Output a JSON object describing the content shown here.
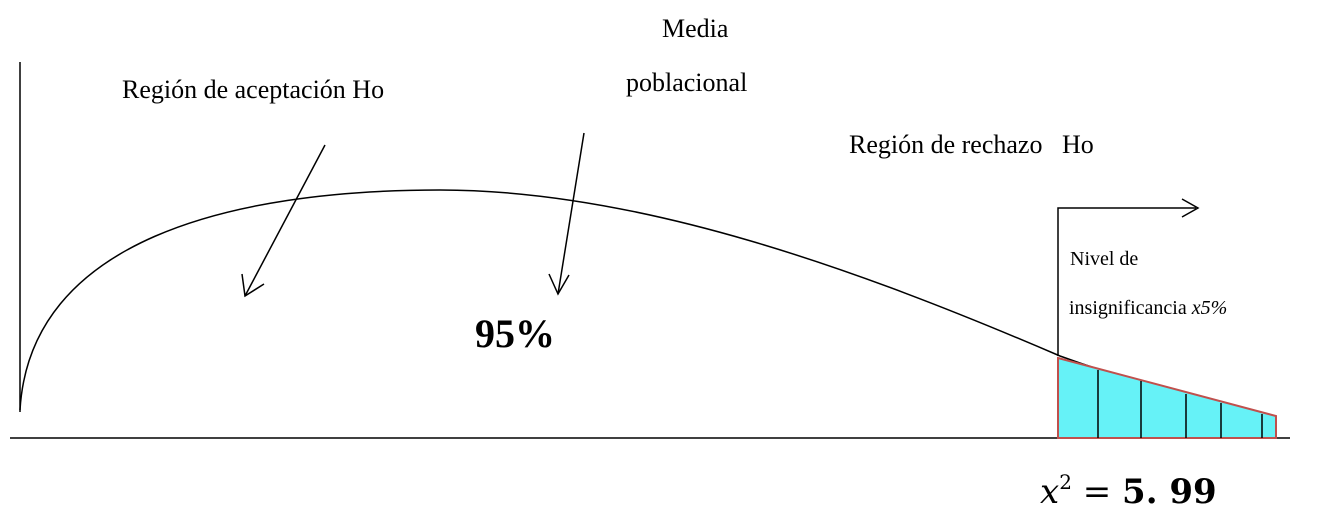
{
  "labels": {
    "acceptance_region": "Región de aceptación Ho",
    "population_mean_line1": "Media",
    "population_mean_line2": "poblacional",
    "rejection_region": "Región de rechazo   Ho",
    "significance_line1": "Nivel de",
    "significance_line2_text": "insignificancia ",
    "significance_line2_symbol": "x5%",
    "acceptance_percent": "95%",
    "critical_value_var": "x",
    "critical_value_exp": "2",
    "critical_value_eq": " = ",
    "critical_value_num": "5. 99"
  },
  "colors": {
    "line": "#000000",
    "rejection_fill": "#66f2f7",
    "rejection_border": "#c0504d"
  }
}
